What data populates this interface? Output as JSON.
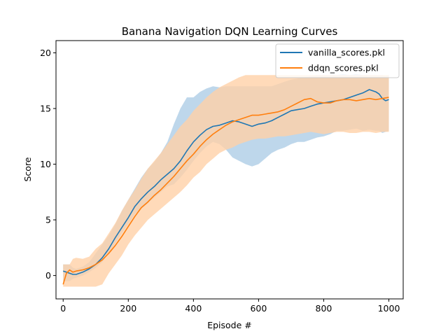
{
  "chart_data": {
    "type": "line",
    "title": "Banana Navigation DQN Learning Curves",
    "xlabel": "Episode #",
    "ylabel": "Score",
    "xlim": [
      -22,
      1044
    ],
    "ylim": [
      -2.1,
      21.1
    ],
    "xticks": [
      0,
      200,
      400,
      600,
      800,
      1000
    ],
    "yticks": [
      0,
      5,
      10,
      15,
      20
    ],
    "grid": false,
    "legend_position": "top-right",
    "series": [
      {
        "name": "vanilla_scores.pkl",
        "color": "#1f77b4",
        "band_color": "#aecde6",
        "band_note": "min/max spread",
        "x": [
          0,
          10,
          20,
          30,
          40,
          60,
          80,
          100,
          120,
          140,
          160,
          180,
          200,
          220,
          240,
          260,
          280,
          300,
          320,
          340,
          360,
          380,
          400,
          420,
          440,
          460,
          480,
          500,
          520,
          540,
          560,
          580,
          600,
          620,
          640,
          660,
          680,
          700,
          720,
          740,
          760,
          780,
          800,
          820,
          840,
          860,
          880,
          900,
          920,
          940,
          960,
          970,
          980,
          990,
          1000
        ],
        "values": [
          0.4,
          0.3,
          0.2,
          0.1,
          0.1,
          0.3,
          0.6,
          1.0,
          1.6,
          2.4,
          3.4,
          4.3,
          5.2,
          6.2,
          6.9,
          7.5,
          8.0,
          8.6,
          9.1,
          9.6,
          10.3,
          11.2,
          12.0,
          12.6,
          13.1,
          13.4,
          13.5,
          13.7,
          13.9,
          13.8,
          13.6,
          13.4,
          13.6,
          13.7,
          13.9,
          14.2,
          14.5,
          14.8,
          14.9,
          15.0,
          15.2,
          15.4,
          15.5,
          15.6,
          15.7,
          15.8,
          16.0,
          16.2,
          16.4,
          16.7,
          16.5,
          16.3,
          15.9,
          15.7,
          15.8
        ],
        "band_min": [
          -0.5,
          -0.5,
          -0.5,
          -0.3,
          -0.2,
          0.0,
          0.3,
          0.7,
          1.2,
          2.0,
          2.9,
          3.8,
          4.6,
          5.5,
          6.0,
          6.5,
          7.0,
          7.5,
          8.0,
          8.2,
          8.8,
          9.5,
          10.3,
          11.0,
          11.6,
          12.0,
          11.8,
          11.3,
          10.6,
          10.3,
          10.0,
          9.8,
          10.0,
          10.5,
          11.0,
          11.3,
          11.5,
          11.8,
          12.0,
          12.0,
          12.2,
          12.4,
          12.5,
          12.7,
          13.0,
          13.0,
          13.1,
          13.2,
          13.0,
          13.1,
          13.0,
          13.0,
          12.8,
          12.9,
          13.0
        ],
        "band_max": [
          1.0,
          1.0,
          1.0,
          0.7,
          0.6,
          0.8,
          1.2,
          2.0,
          2.8,
          3.6,
          4.6,
          5.8,
          6.8,
          7.8,
          8.8,
          9.6,
          10.2,
          11.0,
          12.0,
          13.6,
          15.0,
          16.0,
          16.0,
          16.5,
          16.8,
          17.0,
          16.9,
          17.0,
          17.0,
          17.0,
          17.0,
          17.0,
          17.0,
          17.0,
          17.0,
          17.2,
          17.4,
          17.6,
          17.7,
          17.8,
          17.9,
          18.0,
          18.0,
          18.0,
          18.0,
          18.1,
          18.0,
          18.1,
          18.0,
          18.0,
          18.0,
          18.0,
          18.0,
          17.9,
          18.0
        ]
      },
      {
        "name": "ddqn_scores.pkl",
        "color": "#ff7f0e",
        "band_color": "#ffd1a7",
        "band_note": "min/max spread",
        "x": [
          0,
          10,
          20,
          30,
          40,
          60,
          80,
          100,
          120,
          140,
          160,
          180,
          200,
          220,
          240,
          260,
          280,
          300,
          320,
          340,
          360,
          380,
          400,
          420,
          440,
          460,
          480,
          500,
          520,
          540,
          560,
          580,
          600,
          620,
          640,
          660,
          680,
          700,
          720,
          740,
          760,
          780,
          800,
          820,
          840,
          860,
          880,
          900,
          920,
          940,
          960,
          980,
          1000
        ],
        "values": [
          -0.8,
          0.2,
          0.5,
          0.3,
          0.4,
          0.5,
          0.7,
          1.0,
          1.4,
          2.0,
          2.7,
          3.5,
          4.4,
          5.3,
          6.1,
          6.6,
          7.2,
          7.7,
          8.3,
          8.9,
          9.6,
          10.3,
          10.9,
          11.6,
          12.2,
          12.7,
          13.1,
          13.5,
          13.8,
          14.0,
          14.2,
          14.4,
          14.4,
          14.5,
          14.6,
          14.7,
          14.9,
          15.2,
          15.5,
          15.8,
          15.9,
          15.6,
          15.5,
          15.5,
          15.7,
          15.8,
          15.8,
          15.7,
          15.8,
          15.9,
          15.8,
          15.9,
          16.0
        ],
        "band_min": [
          -1.0,
          -1.0,
          -1.0,
          -1.0,
          -1.0,
          -1.0,
          -1.0,
          -1.0,
          -0.8,
          0.2,
          1.0,
          1.8,
          2.8,
          3.6,
          4.3,
          5.0,
          5.5,
          6.0,
          6.5,
          7.0,
          7.5,
          8.1,
          8.8,
          9.3,
          10.0,
          10.5,
          11.0,
          11.3,
          11.5,
          11.8,
          12.0,
          12.2,
          12.3,
          12.3,
          12.4,
          12.5,
          12.5,
          12.6,
          12.7,
          12.8,
          12.9,
          12.8,
          12.7,
          12.8,
          12.9,
          12.9,
          12.8,
          12.8,
          12.9,
          12.9,
          12.8,
          12.9,
          12.9
        ],
        "band_max": [
          1.0,
          1.0,
          1.0,
          1.5,
          1.6,
          1.5,
          1.7,
          2.4,
          2.9,
          3.8,
          4.7,
          5.8,
          6.8,
          7.7,
          8.7,
          9.6,
          10.3,
          11.0,
          11.8,
          12.6,
          13.4,
          14.0,
          14.8,
          15.4,
          16.0,
          16.5,
          16.9,
          17.2,
          17.5,
          17.8,
          18.0,
          18.0,
          18.0,
          18.0,
          18.0,
          18.0,
          18.0,
          18.0,
          18.0,
          18.0,
          18.0,
          18.0,
          18.0,
          18.0,
          18.0,
          18.0,
          18.0,
          18.0,
          18.0,
          18.0,
          18.0,
          18.0,
          18.0
        ]
      }
    ]
  }
}
